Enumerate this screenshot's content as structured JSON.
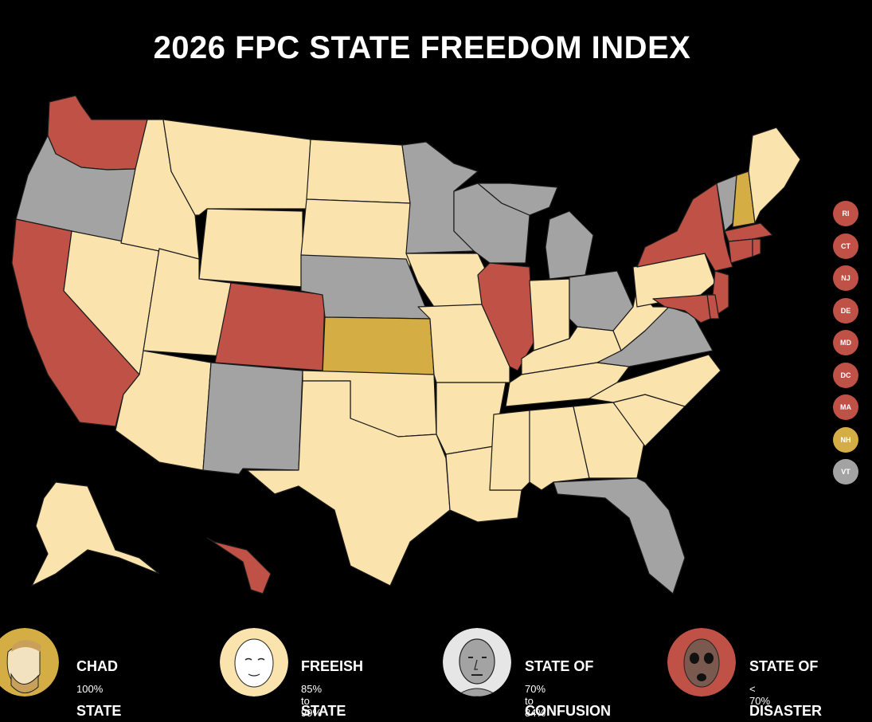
{
  "title": "2026 FPC STATE FREEDOM INDEX",
  "colors": {
    "chad": "#d4ad44",
    "freeish": "#fae3ad",
    "confusion": "#a3a3a3",
    "disaster": "#bf5147",
    "background": "#000000"
  },
  "small_states": [
    {
      "abbr": "RI",
      "category": "disaster"
    },
    {
      "abbr": "CT",
      "category": "disaster"
    },
    {
      "abbr": "NJ",
      "category": "disaster"
    },
    {
      "abbr": "DE",
      "category": "disaster"
    },
    {
      "abbr": "MD",
      "category": "disaster"
    },
    {
      "abbr": "DC",
      "category": "disaster"
    },
    {
      "abbr": "MA",
      "category": "disaster"
    },
    {
      "abbr": "NH",
      "category": "chad"
    },
    {
      "abbr": "VT",
      "category": "confusion"
    }
  ],
  "legend": [
    {
      "key": "chad",
      "line1": "CHAD",
      "line2": "STATE",
      "range": "100%",
      "face_icon": "chad-face-icon"
    },
    {
      "key": "freeish",
      "line1": "FREEISH",
      "line2": "STATE",
      "range": "85% to 99%",
      "face_icon": "wojak-face-icon"
    },
    {
      "key": "confusion",
      "line1": "STATE OF",
      "line2": "CONFUSION",
      "range": "70% to 84%",
      "face_icon": "npc-face-icon"
    },
    {
      "key": "disaster",
      "line1": "STATE OF",
      "line2": "DISASTER",
      "range": "< 70%",
      "face_icon": "doomer-face-icon"
    }
  ]
}
